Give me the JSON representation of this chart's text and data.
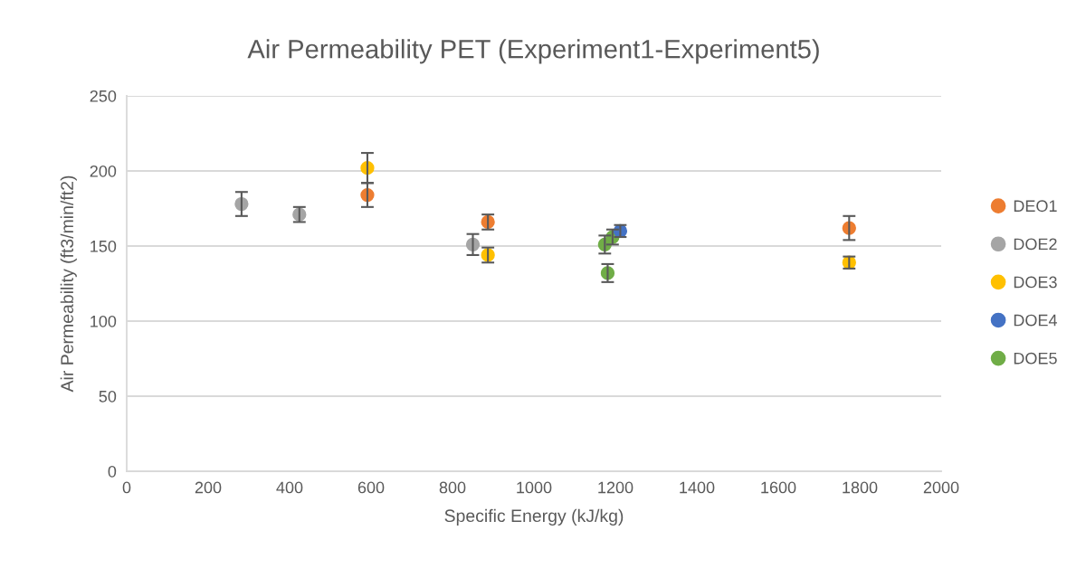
{
  "chart_data": {
    "type": "scatter",
    "title": "Air Permeability PET (Experiment1-Experiment5)",
    "xlabel": "Specific Energy (kJ/kg)",
    "ylabel": "Air Permeability (ft3/min/ft2)",
    "xlim": [
      0,
      2000
    ],
    "xticks": [
      0,
      200,
      400,
      600,
      800,
      1000,
      1200,
      1400,
      1600,
      1800,
      2000
    ],
    "ylim": [
      0,
      250
    ],
    "yticks": [
      0,
      50,
      100,
      150,
      200,
      250
    ],
    "grid": "y",
    "legend": "right",
    "marker": "circle",
    "series": [
      {
        "name": "DEO1",
        "color": "#ed7d31",
        "x": [
          591,
          887,
          1774
        ],
        "values": [
          184,
          166,
          162
        ],
        "errors": [
          8,
          5,
          8
        ]
      },
      {
        "name": "DOE2",
        "color": "#a5a5a5",
        "x": [
          282,
          424,
          850
        ],
        "values": [
          178,
          171,
          151
        ],
        "errors": [
          8,
          5,
          7
        ]
      },
      {
        "name": "DOE3",
        "color": "#ffc000",
        "x": [
          591,
          887,
          1774
        ],
        "values": [
          202,
          144,
          139
        ],
        "errors": [
          10,
          5,
          4
        ]
      },
      {
        "name": "DOE4",
        "color": "#4472c4",
        "x": [
          1212
        ],
        "values": [
          160
        ],
        "errors": [
          4
        ]
      },
      {
        "name": "DOE5",
        "color": "#70ad47",
        "x": [
          1174,
          1193,
          1181
        ],
        "values": [
          151,
          156,
          132
        ],
        "errors": [
          6,
          5,
          6
        ]
      }
    ]
  }
}
